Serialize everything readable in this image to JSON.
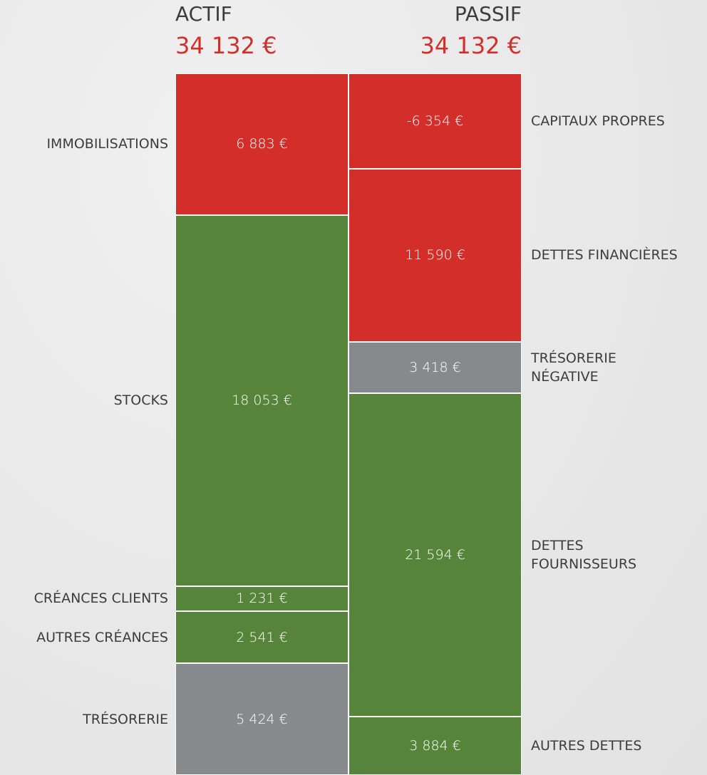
{
  "chart_data": {
    "type": "balance-sheet",
    "stacks": [
      {
        "name": "ACTIF",
        "total": 34132,
        "total_label": "34 132 €",
        "side": "left",
        "segments": [
          {
            "name": "IMMOBILISATIONS",
            "value": 6883,
            "value_label": "6 883 €",
            "color": "#d42e2a"
          },
          {
            "name": "STOCKS",
            "value": 18053,
            "value_label": "18 053 €",
            "color": "#56843a"
          },
          {
            "name": "CRÉANCES CLIENTS",
            "value": 1231,
            "value_label": "1 231 €",
            "color": "#56843a"
          },
          {
            "name": "AUTRES CRÉANCES",
            "value": 2541,
            "value_label": "2 541 €",
            "color": "#56843a"
          },
          {
            "name": "TRÉSORERIE",
            "value": 5424,
            "value_label": "5 424 €",
            "color": "#878a8d"
          }
        ]
      },
      {
        "name": "PASSIF",
        "total": 34132,
        "total_label": "34 132 €",
        "side": "right",
        "segments": [
          {
            "name": "CAPITAUX PROPRES",
            "value": -6354,
            "value_label": "-6 354 €",
            "color": "#d42e2a"
          },
          {
            "name": "DETTES FINANCIÈRES",
            "value": 11590,
            "value_label": "11 590 €",
            "color": "#d42e2a"
          },
          {
            "name": "TRÉSORERIE\nNÉGATIVE",
            "value": 3418,
            "value_label": "3 418 €",
            "color": "#878a8d"
          },
          {
            "name": "DETTES\nFOURNISSEURS",
            "value": 21594,
            "value_label": "21 594 €",
            "color": "#56843a"
          },
          {
            "name": "AUTRES DETTES",
            "value": 3884,
            "value_label": "3 884 €",
            "color": "#56843a"
          }
        ]
      }
    ],
    "total_color": "#d42e2a"
  }
}
